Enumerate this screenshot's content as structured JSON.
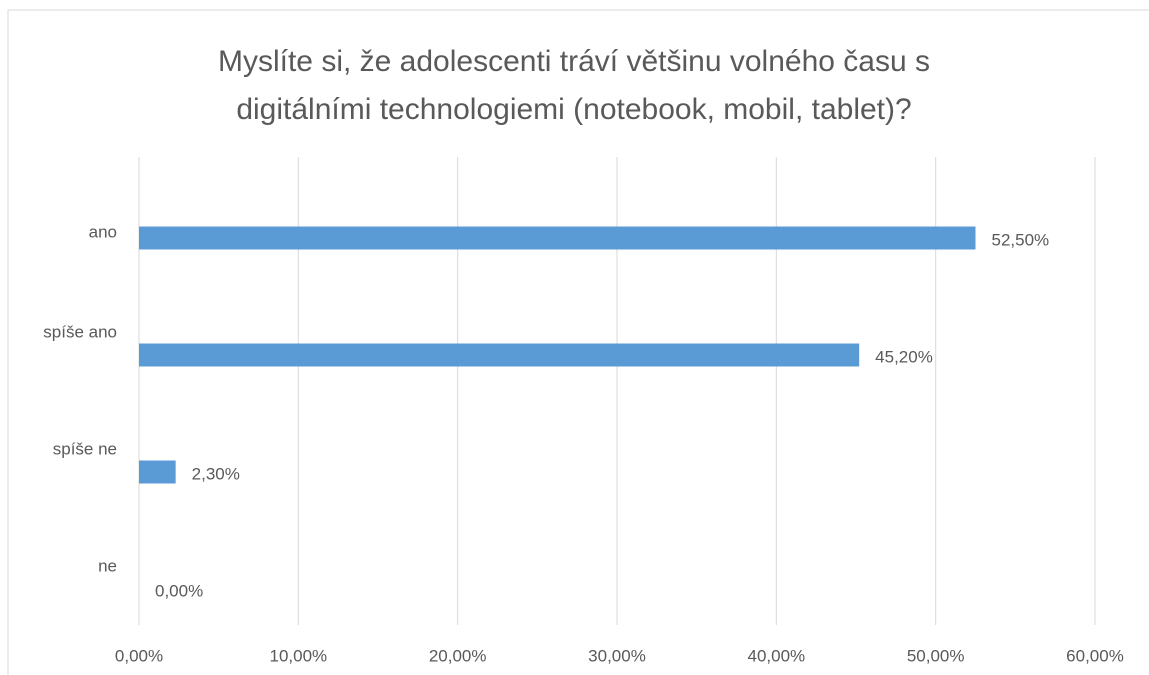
{
  "chart_data": {
    "type": "bar",
    "orientation": "horizontal",
    "title": "Myslíte si, že adolescenti tráví většinu volného času s digitálními technologiemi (notebook, mobil, tablet)?",
    "categories": [
      "ano",
      "spíše ano",
      "spíše ne",
      "ne"
    ],
    "values": [
      52.5,
      45.2,
      2.3,
      0
    ],
    "value_labels": [
      "52,50%",
      "45,20%",
      "2,30%",
      "0,00%"
    ],
    "color": "#5b9bd5",
    "xlim": [
      0,
      60
    ],
    "xticks": [
      {
        "value": 0,
        "label": "0,00%"
      },
      {
        "value": 10,
        "label": "10,00%"
      },
      {
        "value": 20,
        "label": "20,00%"
      },
      {
        "value": 30,
        "label": "30,00%"
      },
      {
        "value": 40,
        "label": "40,00%"
      },
      {
        "value": 50,
        "label": "50,00%"
      },
      {
        "value": 60,
        "label": "60,00%"
      }
    ],
    "grid": true
  }
}
